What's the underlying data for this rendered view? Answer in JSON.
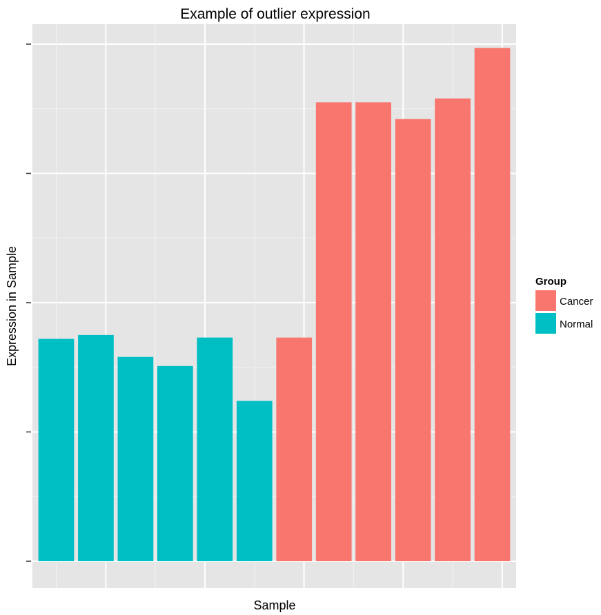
{
  "chart_data": {
    "type": "bar",
    "title": "Example of outlier expression",
    "xlabel": "Sample",
    "ylabel": "Expression in Sample",
    "x_tick_labels_visible": false,
    "y_tick_labels_visible": false,
    "ylim": [
      0,
      4
    ],
    "grid": true,
    "legend_position": "right",
    "legend": {
      "title": "Group",
      "entries": [
        {
          "label": "Cancer",
          "color": "#F8766D"
        },
        {
          "label": "Normal",
          "color": "#00BFC4"
        }
      ]
    },
    "bars": [
      {
        "group": "Normal",
        "value": 1.72
      },
      {
        "group": "Normal",
        "value": 1.75
      },
      {
        "group": "Normal",
        "value": 1.58
      },
      {
        "group": "Normal",
        "value": 1.51
      },
      {
        "group": "Normal",
        "value": 1.73
      },
      {
        "group": "Normal",
        "value": 1.24
      },
      {
        "group": "Cancer",
        "value": 1.73
      },
      {
        "group": "Cancer",
        "value": 3.55
      },
      {
        "group": "Cancer",
        "value": 3.55
      },
      {
        "group": "Cancer",
        "value": 3.42
      },
      {
        "group": "Cancer",
        "value": 3.58
      },
      {
        "group": "Cancer",
        "value": 3.97
      }
    ]
  }
}
